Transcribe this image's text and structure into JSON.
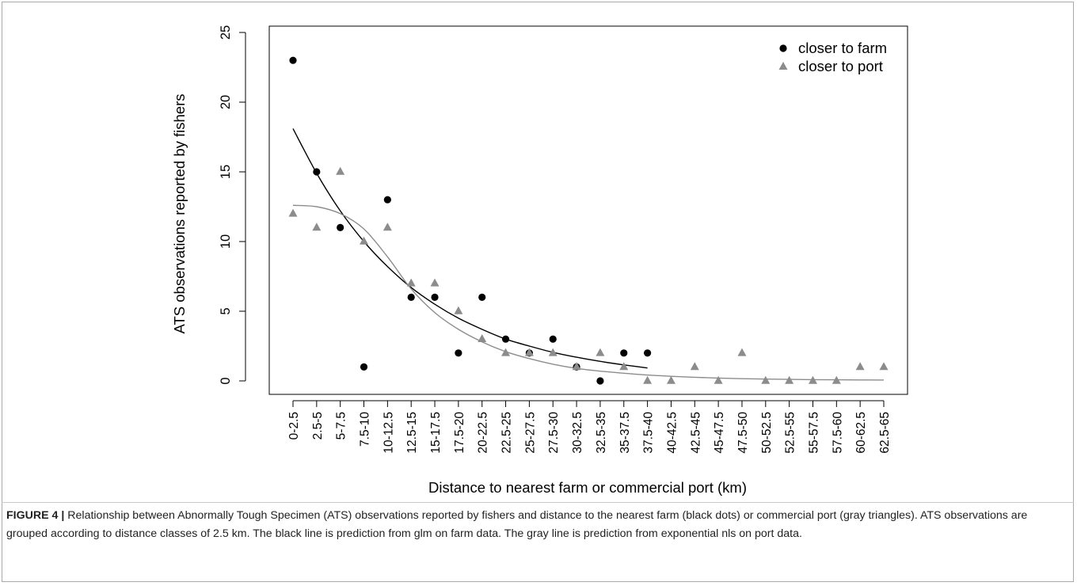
{
  "caption": {
    "label": "FIGURE 4 |",
    "text": " Relationship between Abnormally Tough Specimen (ATS) observations reported by fishers and distance to the nearest farm (black dots) or commercial port (gray triangles). ATS observations are grouped according to distance classes of 2.5 km. The black line is prediction from glm on farm data. The gray line is prediction from exponential nls on port data."
  },
  "chart_data": {
    "type": "scatter",
    "xlabel": "Distance to nearest farm or commercial port (km)",
    "ylabel": "ATS observations reported by fishers",
    "ylim": [
      0,
      25
    ],
    "yticks": [
      0,
      5,
      10,
      15,
      20,
      25
    ],
    "grid": false,
    "legend_position": "top-right",
    "categories": [
      "0-2.5",
      "2.5-5",
      "5-7.5",
      "7.5-10",
      "10-12.5",
      "12.5-15",
      "15-17.5",
      "17.5-20",
      "20-22.5",
      "22.5-25",
      "25-27.5",
      "27.5-30",
      "30-32.5",
      "32.5-35",
      "35-37.5",
      "37.5-40",
      "40-42.5",
      "42.5-45",
      "45-47.5",
      "47.5-50",
      "50-52.5",
      "52.5-55",
      "55-57.5",
      "57.5-60",
      "60-62.5",
      "62.5-65"
    ],
    "series": [
      {
        "name": "closer to farm",
        "marker": "circle",
        "color": "#000000",
        "x": [
          1.25,
          3.75,
          6.25,
          8.75,
          11.25,
          13.75,
          16.25,
          18.75,
          21.25,
          23.75,
          26.25,
          28.75,
          31.25,
          33.75,
          36.25,
          38.75
        ],
        "y": [
          23,
          15,
          11,
          1,
          13,
          6,
          6,
          2,
          6,
          3,
          2,
          3,
          1,
          0,
          2,
          2
        ]
      },
      {
        "name": "closer to port",
        "marker": "triangle",
        "color": "#8c8c8c",
        "x": [
          1.25,
          3.75,
          6.25,
          8.75,
          11.25,
          13.75,
          16.25,
          18.75,
          21.25,
          23.75,
          26.25,
          28.75,
          31.25,
          33.75,
          36.25,
          38.75,
          41.25,
          43.75,
          46.25,
          48.75,
          51.25,
          53.75,
          56.25,
          58.75,
          61.25,
          63.75
        ],
        "y": [
          12,
          11,
          15,
          10,
          11,
          7,
          7,
          5,
          3,
          2,
          2,
          2,
          1,
          2,
          1,
          0,
          0,
          1,
          0,
          2,
          0,
          0,
          0,
          0,
          1,
          1
        ]
      }
    ],
    "fits": [
      {
        "name": "glm on farm data",
        "color": "#000000",
        "x": [
          1.25,
          3.75,
          6.25,
          8.75,
          11.25,
          13.75,
          16.25,
          18.75,
          21.25,
          23.75,
          26.25,
          28.75,
          31.25,
          33.75,
          36.25,
          38.75
        ],
        "y": [
          18.1,
          14.9,
          12.2,
          10.0,
          8.2,
          6.7,
          5.5,
          4.5,
          3.7,
          3.0,
          2.5,
          2.05,
          1.7,
          1.4,
          1.15,
          0.93
        ]
      },
      {
        "name": "exponential nls on port data",
        "color": "#8c8c8c",
        "x": [
          1.25,
          3.75,
          6.25,
          8.75,
          11.25,
          13.75,
          16.25,
          18.75,
          21.25,
          23.75,
          26.25,
          28.75,
          31.25,
          33.75,
          36.25,
          38.75,
          41.25,
          43.75,
          46.25,
          48.75,
          51.25,
          53.75,
          56.25,
          58.75,
          61.25,
          63.75
        ],
        "y": [
          12.6,
          12.5,
          12.0,
          10.9,
          8.9,
          6.6,
          4.9,
          3.7,
          2.8,
          2.1,
          1.6,
          1.2,
          0.9,
          0.7,
          0.55,
          0.42,
          0.33,
          0.26,
          0.2,
          0.16,
          0.13,
          0.11,
          0.09,
          0.08,
          0.07,
          0.06
        ]
      }
    ]
  }
}
